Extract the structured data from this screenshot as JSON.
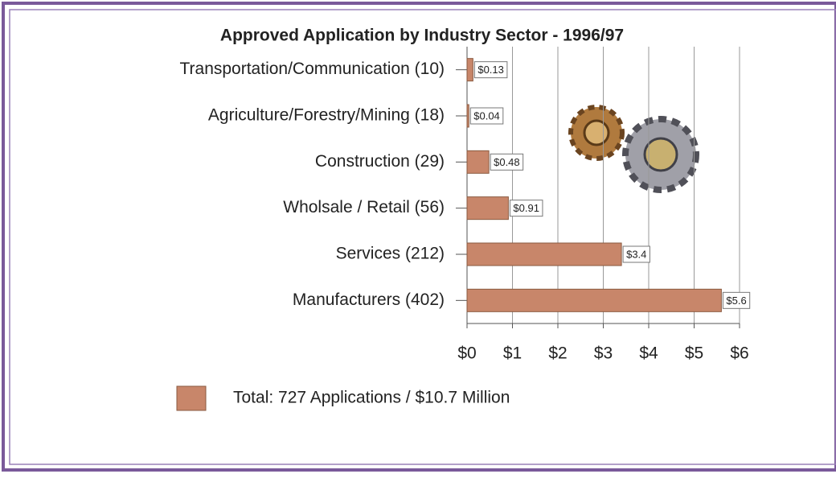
{
  "chart_data": {
    "type": "bar",
    "orientation": "horizontal",
    "title": "Approved Application by Industry Sector - 1996/97",
    "categories": [
      "Transportation/Communication (10)",
      "Agriculture/Forestry/Mining (18)",
      "Construction (29)",
      "Wholsale / Retail (56)",
      "Services (212)",
      "Manufacturers (402)"
    ],
    "series": [
      {
        "name": "Total: 727 Applications / $10.7 Million",
        "color": "#c8866a",
        "values": [
          0.13,
          0.04,
          0.48,
          0.91,
          3.4,
          5.6
        ],
        "value_labels": [
          "$0.13",
          "$0.04",
          "$0.48",
          "$0.91",
          "$3.4",
          "$5.6"
        ]
      }
    ],
    "xlim": [
      0,
      6
    ],
    "xticks": [
      {
        "value": 0,
        "label": "$0"
      },
      {
        "value": 1,
        "label": "$1"
      },
      {
        "value": 2,
        "label": "$2"
      },
      {
        "value": 3,
        "label": "$3"
      },
      {
        "value": 4,
        "label": "$4"
      },
      {
        "value": 5,
        "label": "$5"
      },
      {
        "value": 6,
        "label": "$6"
      }
    ],
    "grid": true
  }
}
